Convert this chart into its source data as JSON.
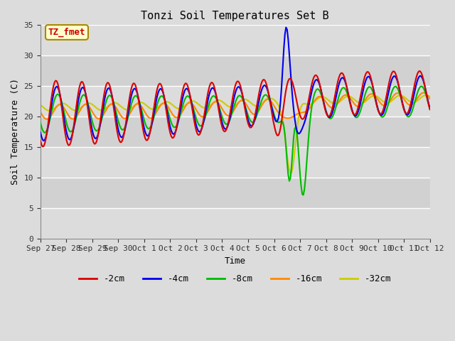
{
  "title": "Tonzi Soil Temperatures Set B",
  "xlabel": "Time",
  "ylabel": "Soil Temperature (C)",
  "ylim": [
    0,
    35
  ],
  "yticks": [
    0,
    5,
    10,
    15,
    20,
    25,
    30,
    35
  ],
  "bg_color": "#dcdcdc",
  "plot_bg_color": "#dcdcdc",
  "annotation_text": "TZ_fmet",
  "annotation_bg": "#ffffcc",
  "annotation_edge": "#aa8800",
  "legend_labels": [
    "-2cm",
    "-4cm",
    "-8cm",
    "-16cm",
    "-32cm"
  ],
  "line_colors": [
    "#dd0000",
    "#0000ee",
    "#00bb00",
    "#ff8800",
    "#cccc00"
  ],
  "line_widths": [
    1.5,
    1.5,
    1.5,
    1.5,
    1.5
  ],
  "figsize": [
    6.4,
    4.8
  ],
  "dpi": 100
}
